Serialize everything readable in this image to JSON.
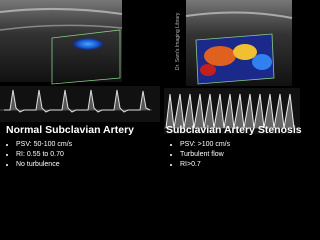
{
  "watermark": "Dr. Sam's Imaging Library",
  "left": {
    "title": "Normal Subclavian Artery",
    "bullets": [
      "PSV: 50-100 cm/s",
      "RI: 0.55 to 0.70",
      "No turbulence"
    ]
  },
  "right": {
    "title": "Subclavian Artery Stenosis",
    "bullets": [
      "PSV: >100 cm/s",
      "Turbulent flow",
      "RI>0.7"
    ]
  }
}
